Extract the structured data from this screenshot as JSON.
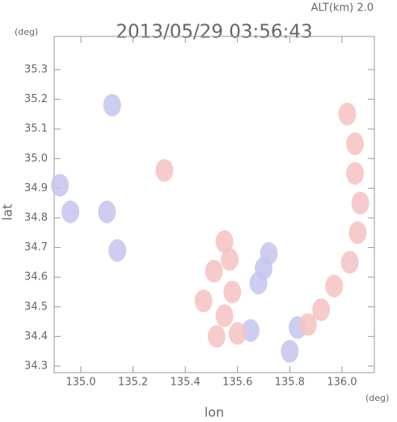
{
  "chart_data": {
    "type": "scatter",
    "title": "2013/05/29 03:56:43",
    "subtitle": "ALT(km) 2.0",
    "y_label": "lat",
    "y_unit": "(deg)",
    "x_label": "lon",
    "x_unit": "(deg)",
    "xlim": [
      134.898,
      136.124
    ],
    "ylim": [
      34.278,
      35.412
    ],
    "xticks": [
      {
        "value": 135.0,
        "label": "135.0"
      },
      135.2,
      135.4,
      135.6,
      135.8,
      {
        "value": 136.0,
        "label": "136.0"
      }
    ],
    "yticks": [
      34.3,
      34.4,
      34.5,
      34.6,
      34.7,
      34.8,
      34.9,
      {
        "value": 35.0,
        "label": "35.0"
      },
      35.1,
      35.2,
      35.3
    ],
    "series": [
      {
        "color": "#c4c4ee",
        "x": [
          135.12,
          134.92,
          135.1,
          134.96,
          135.14,
          135.7,
          135.72,
          135.68,
          135.83,
          135.8,
          135.65
        ],
        "y": [
          35.18,
          34.91,
          34.82,
          34.82,
          34.69,
          34.63,
          34.68,
          34.58,
          34.43,
          34.35,
          34.42
        ]
      },
      {
        "color": "#f6c2c2",
        "x": [
          136.02,
          136.05,
          136.05,
          136.07,
          136.06,
          136.03,
          135.97,
          135.92,
          135.87,
          135.32,
          135.55,
          135.51,
          135.58,
          135.55,
          135.52,
          135.6,
          135.47,
          135.57
        ],
        "y": [
          35.15,
          35.05,
          34.95,
          34.85,
          34.75,
          34.65,
          34.57,
          34.49,
          34.44,
          34.96,
          34.72,
          34.62,
          34.55,
          34.47,
          34.4,
          34.41,
          34.52,
          34.66
        ]
      }
    ]
  }
}
